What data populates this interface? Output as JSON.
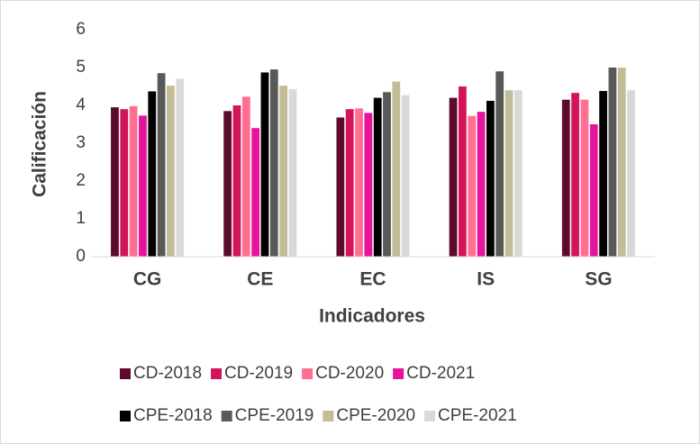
{
  "chart_data": {
    "type": "bar",
    "xlabel": "Indicadores",
    "ylabel": "Calificación",
    "categories": [
      "CG",
      "CE",
      "EC",
      "IS",
      "SG"
    ],
    "series": [
      {
        "name": "CD-2018",
        "color": "#5c0a2e",
        "values": [
          3.95,
          3.85,
          3.68,
          4.2,
          4.15
        ]
      },
      {
        "name": "CD-2019",
        "color": "#d4145a",
        "values": [
          3.9,
          4.0,
          3.9,
          4.5,
          4.33
        ]
      },
      {
        "name": "CD-2020",
        "color": "#ff6f91",
        "values": [
          3.98,
          4.23,
          3.92,
          3.72,
          4.15
        ]
      },
      {
        "name": "CD-2021",
        "color": "#e6149b",
        "values": [
          3.73,
          3.4,
          3.8,
          3.83,
          3.5
        ]
      },
      {
        "name": "CPE-2018",
        "color": "#000000",
        "values": [
          4.37,
          4.87,
          4.2,
          4.12,
          4.38
        ]
      },
      {
        "name": "CPE-2019",
        "color": "#595959",
        "values": [
          4.85,
          4.95,
          4.35,
          4.9,
          5.0
        ]
      },
      {
        "name": "CPE-2020",
        "color": "#c4bc96",
        "values": [
          4.52,
          4.52,
          4.63,
          4.4,
          5.0
        ]
      },
      {
        "name": "CPE-2021",
        "color": "#d9d9d9",
        "values": [
          4.7,
          4.43,
          4.27,
          4.4,
          4.4
        ]
      }
    ],
    "ylim": [
      0,
      6
    ],
    "yticks": [
      0,
      1,
      2,
      3,
      4,
      5,
      6
    ],
    "grid": false,
    "legend": "bottom"
  }
}
